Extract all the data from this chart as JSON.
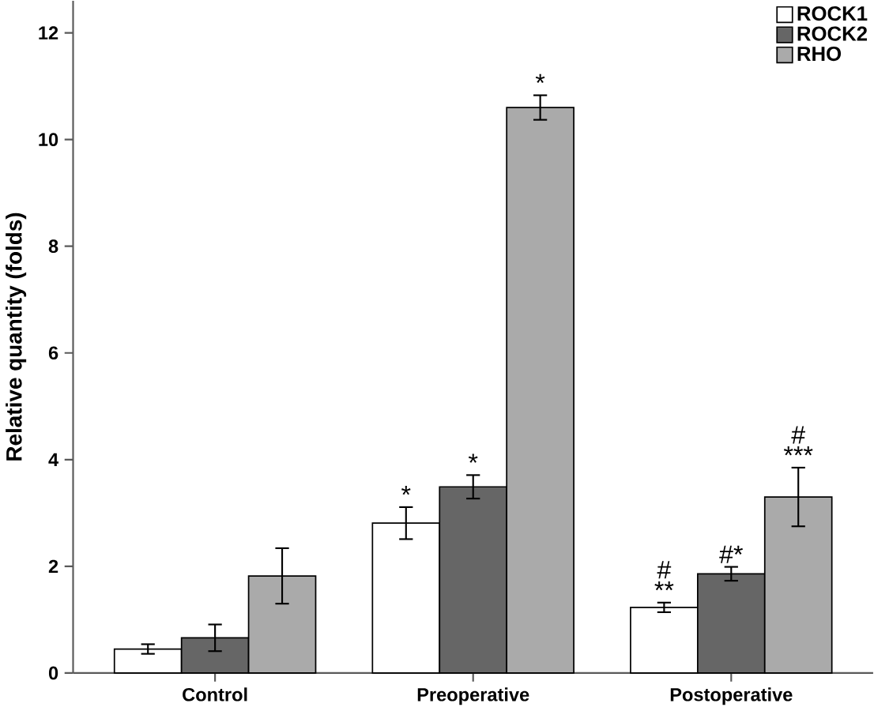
{
  "chart_data": {
    "type": "bar",
    "ylabel": "Relative quantity (folds)",
    "categories": [
      "Control",
      "Preoperative",
      "Postoperative"
    ],
    "series": [
      {
        "name": "ROCK1",
        "color": "#ffffff",
        "values": [
          0.45,
          2.81,
          1.23
        ],
        "errors": [
          0.09,
          0.3,
          0.09
        ],
        "value_labels": [
          null,
          [
            "*"
          ],
          [
            "#",
            "**"
          ]
        ]
      },
      {
        "name": "ROCK2",
        "color": "#666666",
        "values": [
          0.66,
          3.49,
          1.86
        ],
        "errors": [
          0.25,
          0.22,
          0.13
        ],
        "value_labels": [
          null,
          [
            "*"
          ],
          [
            "#*"
          ]
        ]
      },
      {
        "name": "RHO",
        "color": "#aaaaaa",
        "values": [
          1.82,
          10.6,
          3.3
        ],
        "errors": [
          0.52,
          0.23,
          0.55
        ],
        "value_labels": [
          null,
          [
            "*"
          ],
          [
            "#",
            "***"
          ]
        ]
      }
    ],
    "ylim": [
      0,
      12.6
    ],
    "yticks": [
      0,
      2,
      4,
      6,
      8,
      10,
      12
    ],
    "legend": "top right",
    "grid": false
  }
}
